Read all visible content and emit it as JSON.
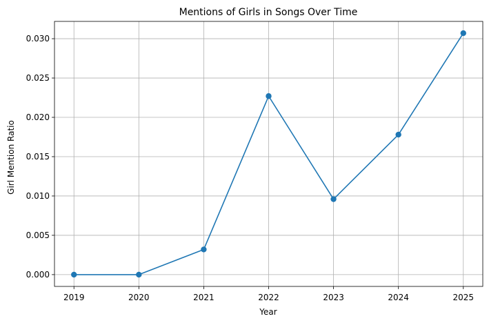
{
  "chart_data": {
    "type": "line",
    "title": "Mentions of Girls in Songs Over Time",
    "xlabel": "Year",
    "ylabel": "Girl Mention Ratio",
    "x": [
      2019,
      2020,
      2021,
      2022,
      2023,
      2024,
      2025
    ],
    "x_tick_labels": [
      "2019",
      "2020",
      "2021",
      "2022",
      "2023",
      "2024",
      "2025"
    ],
    "series": [
      {
        "values": [
          0.0,
          0.0,
          0.0032,
          0.0227,
          0.0096,
          0.0178,
          0.0307
        ]
      }
    ],
    "y_ticks": [
      0.0,
      0.005,
      0.01,
      0.015,
      0.02,
      0.025,
      0.03
    ],
    "y_tick_labels": [
      "0.000",
      "0.005",
      "0.010",
      "0.015",
      "0.020",
      "0.025",
      "0.030"
    ],
    "xlim": [
      2018.7,
      2025.3
    ],
    "ylim": [
      -0.0015,
      0.0322
    ],
    "grid": true,
    "marker": "circle",
    "line_color": "#1f77b4",
    "grid_color": "#b0b0b0"
  }
}
